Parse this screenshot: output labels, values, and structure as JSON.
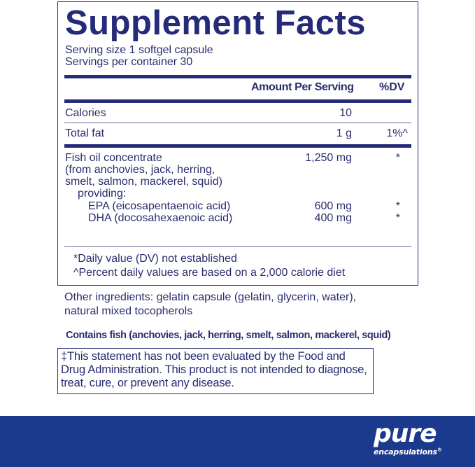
{
  "title": "Supplement Facts",
  "serving_size": "Serving size  1 softgel capsule",
  "servings_per_container": "Servings per container  30",
  "header": {
    "amount": "Amount Per Serving",
    "dv": "%DV"
  },
  "rows": [
    {
      "name": "Calories",
      "amount": "10",
      "dv": ""
    },
    {
      "name": "Total fat",
      "amount": "1 g",
      "dv": "1%^"
    },
    {
      "name": "Fish oil concentrate",
      "amount": "1,250 mg",
      "dv": "*"
    },
    {
      "name": "(from anchovies, jack, herring,"
    },
    {
      "name": "smelt, salmon, mackerel, squid)"
    },
    {
      "name": "providing:"
    },
    {
      "name": "EPA (eicosapentaenoic acid)",
      "amount": "600 mg",
      "dv": "*"
    },
    {
      "name": "DHA (docosahexaenoic acid)",
      "amount": "400 mg",
      "dv": "*"
    }
  ],
  "footnotes": [
    "*Daily value (DV) not established",
    "^Percent daily values are based on a 2,000 calorie diet"
  ],
  "other_ingredients": [
    "Other ingredients: gelatin capsule (gelatin, glycerin, water),",
    "natural mixed tocopherols"
  ],
  "contains": "Contains fish (anchovies, jack, herring, smelt, salmon, mackerel, squid)",
  "disclaimer": "‡This statement has not been evaluated by the Food and Drug Administration. This product is not intended to diagnose, treat, cure, or prevent any disease.",
  "brand": {
    "name": "pure",
    "sub": "encapsulations",
    "mark": "®"
  },
  "colors": {
    "navy": "#252b78",
    "band": "#1c3a8d"
  }
}
